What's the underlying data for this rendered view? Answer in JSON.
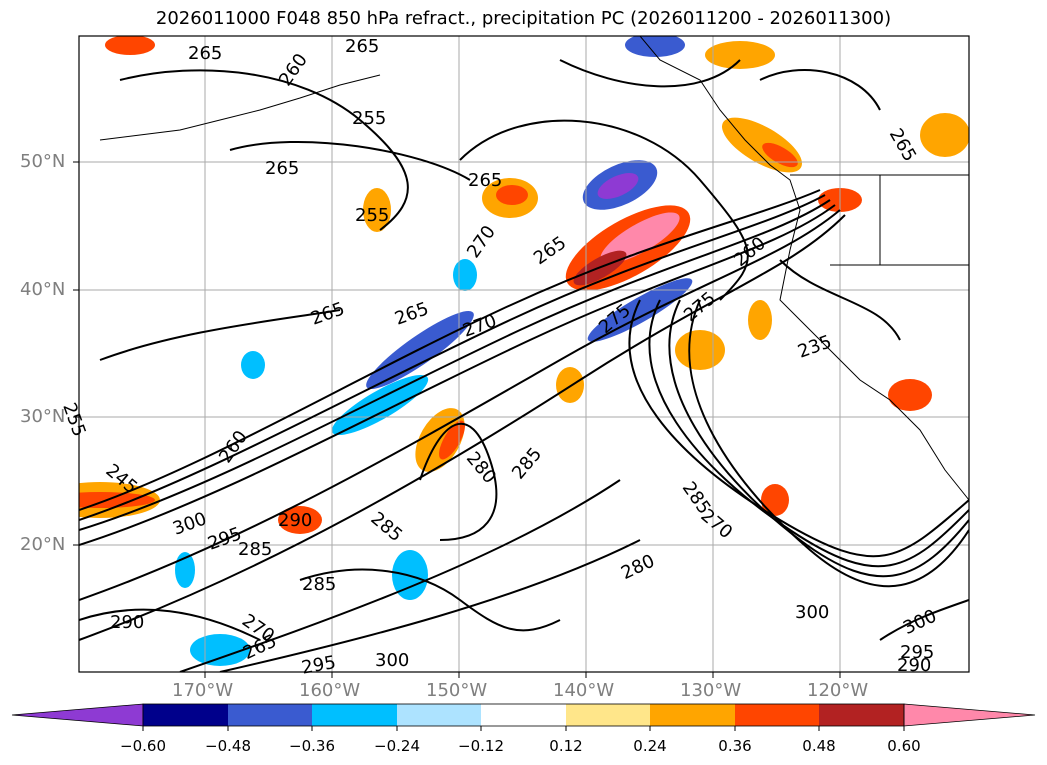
{
  "title": "2026011000 F048 850 hPa refract., precipitation PC (2026011200 - 2026011300)",
  "axes": {
    "lat_labels": [
      "50°N",
      "40°N",
      "30°N",
      "20°N"
    ],
    "lon_labels": [
      "170°W",
      "160°W",
      "150°W",
      "140°W",
      "130°W",
      "120°W"
    ],
    "grid": true
  },
  "contour_labels": [
    "265",
    "265",
    "260",
    "255",
    "255",
    "265",
    "265",
    "270",
    "265",
    "265",
    "265",
    "270",
    "275",
    "275",
    "260",
    "235",
    "265",
    "255",
    "260",
    "245",
    "300",
    "295",
    "285",
    "290",
    "285",
    "285",
    "270",
    "280",
    "285",
    "280",
    "285",
    "270",
    "265",
    "290",
    "300",
    "295",
    "300",
    "300",
    "295",
    "290"
  ],
  "colorbar": {
    "ticks": [
      "−0.60",
      "−0.48",
      "−0.36",
      "−0.24",
      "−0.12",
      "0.12",
      "0.24",
      "0.36",
      "0.48",
      "0.60"
    ],
    "colors": [
      "#8e3ad3",
      "#00008b",
      "#3a5bd0",
      "#00bfff",
      "#ade3ff",
      "#ffffff",
      "#ffe68a",
      "#ffa500",
      "#ff4500",
      "#b22222",
      "#ff88aa"
    ]
  },
  "chart_data": {
    "type": "heatmap",
    "title": "2026011000 F048 850 hPa refract., precipitation PC (2026011200 - 2026011300)",
    "lon_range": [
      -180,
      -110
    ],
    "lat_range": [
      10,
      60
    ],
    "contour_field": "850 hPa refractivity",
    "shaded_field": "precipitation PC",
    "shading_levels": [
      -0.6,
      -0.48,
      -0.36,
      -0.24,
      -0.12,
      0.12,
      0.24,
      0.36,
      0.48,
      0.6
    ]
  }
}
